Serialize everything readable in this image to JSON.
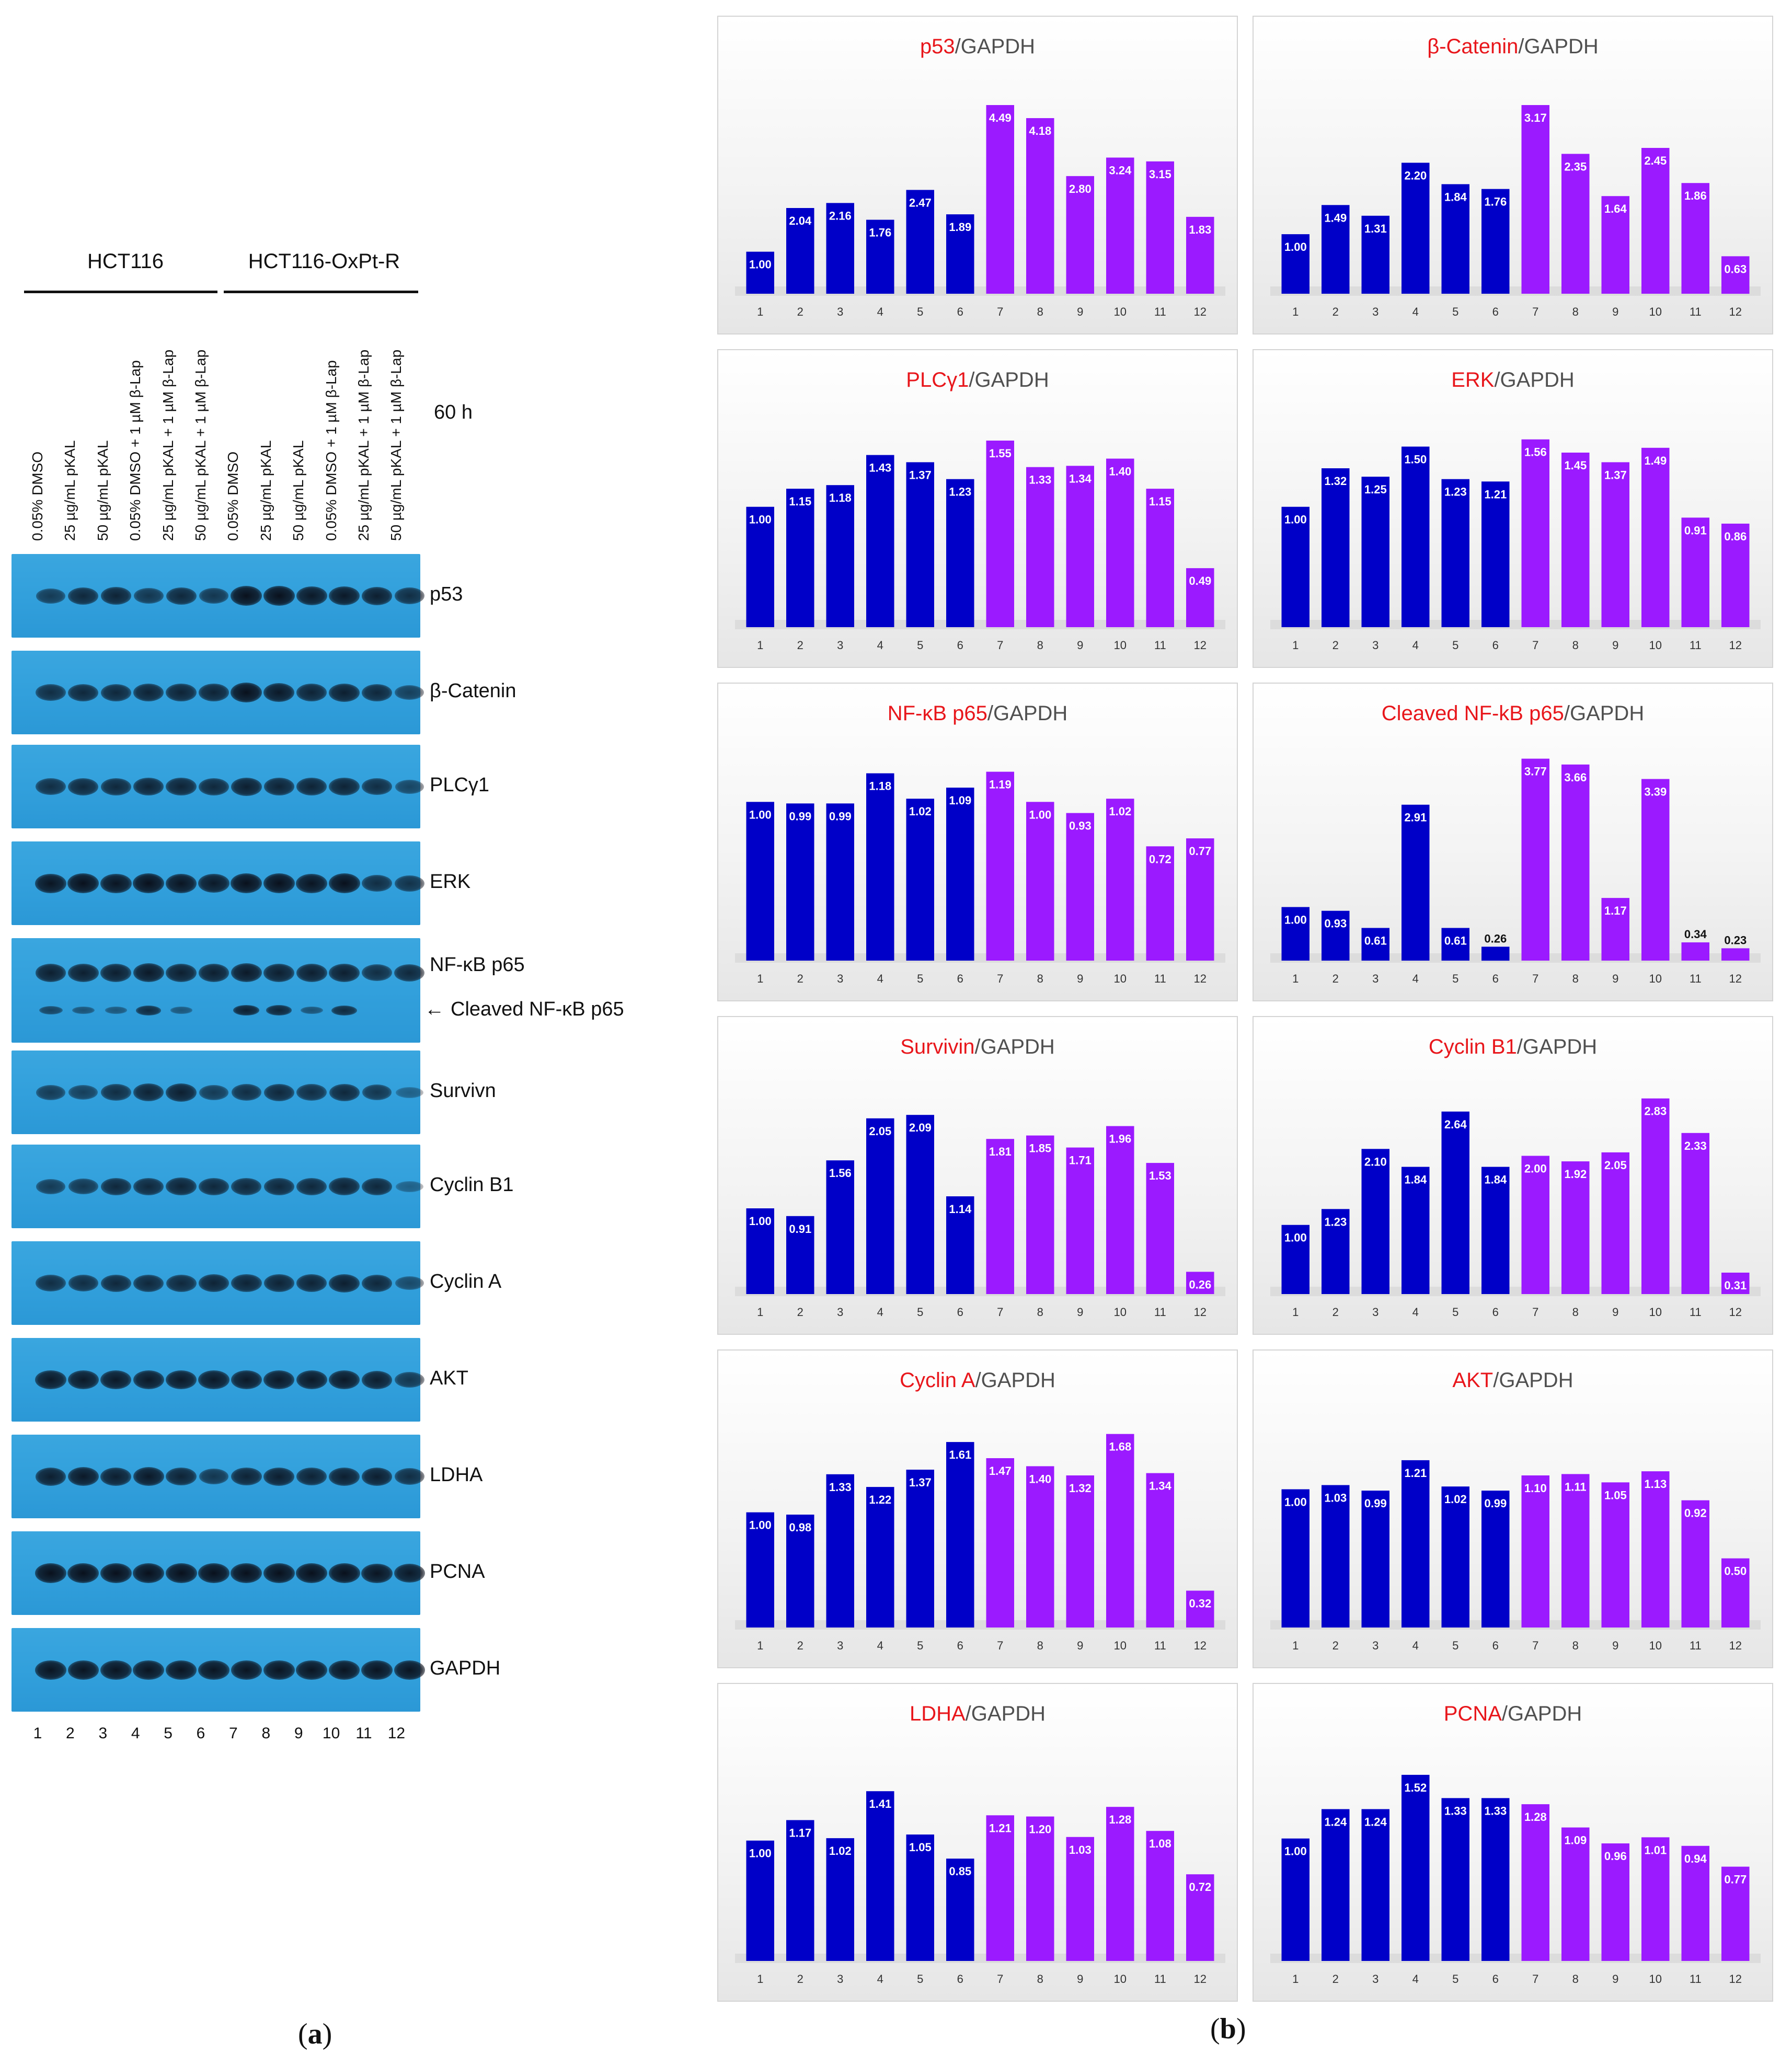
{
  "panel_a": {
    "groups": [
      {
        "label": "HCT116"
      },
      {
        "label": "HCT116-OxPt-R"
      }
    ],
    "time_label": "60 h",
    "lane_labels": [
      "0.05% DMSO",
      "25 µg/mL pKAL",
      "50 µg/mL pKAL",
      "0.05% DMSO   + 1 µM β-Lap",
      "25 µg/mL pKAL + 1 µM β-Lap",
      "50 µg/mL pKAL + 1 µM β-Lap",
      "0.05% DMSO",
      "25 µg/mL pKAL",
      "50 µg/mL pKAL",
      "0.05% DMSO   + 1 µM β-Lap",
      "25 µg/mL pKAL + 1 µM β-Lap",
      "50 µg/mL pKAL + 1 µM β-Lap"
    ],
    "blots": [
      {
        "label": "p53",
        "intensity": [
          0.55,
          0.75,
          0.8,
          0.6,
          0.75,
          0.6,
          1.0,
          1.0,
          0.9,
          0.9,
          0.85,
          0.7
        ]
      },
      {
        "label": "β-Catenin",
        "intensity": [
          0.7,
          0.75,
          0.75,
          0.8,
          0.8,
          0.8,
          1.0,
          0.9,
          0.8,
          0.85,
          0.75,
          0.5
        ]
      },
      {
        "label": "PLCγ1",
        "intensity": [
          0.7,
          0.75,
          0.75,
          0.8,
          0.8,
          0.75,
          0.85,
          0.8,
          0.8,
          0.8,
          0.7,
          0.45
        ]
      },
      {
        "label": "ERK",
        "intensity": [
          0.95,
          1.0,
          0.95,
          1.0,
          0.95,
          0.9,
          1.0,
          1.0,
          0.95,
          1.0,
          0.7,
          0.65
        ]
      },
      {
        "label": "NF-κB p65",
        "intensity": [
          0.85,
          0.85,
          0.85,
          0.9,
          0.85,
          0.85,
          0.9,
          0.85,
          0.85,
          0.85,
          0.7,
          0.75
        ]
      },
      {
        "label": "Survivn",
        "intensity": [
          0.55,
          0.5,
          0.7,
          0.8,
          0.85,
          0.55,
          0.7,
          0.75,
          0.7,
          0.75,
          0.6,
          0.15
        ]
      },
      {
        "label": "Cyclin B1",
        "intensity": [
          0.55,
          0.6,
          0.75,
          0.75,
          0.8,
          0.75,
          0.75,
          0.75,
          0.75,
          0.8,
          0.75,
          0.15
        ]
      },
      {
        "label": "Cyclin A",
        "intensity": [
          0.7,
          0.7,
          0.75,
          0.75,
          0.75,
          0.8,
          0.8,
          0.8,
          0.8,
          0.85,
          0.75,
          0.4
        ]
      },
      {
        "label": "AKT",
        "intensity": [
          0.9,
          0.9,
          0.9,
          0.9,
          0.9,
          0.9,
          0.9,
          0.9,
          0.9,
          0.9,
          0.85,
          0.6
        ]
      },
      {
        "label": "LDHA",
        "intensity": [
          0.85,
          0.9,
          0.85,
          0.9,
          0.8,
          0.6,
          0.8,
          0.85,
          0.8,
          0.85,
          0.85,
          0.7
        ]
      },
      {
        "label": "PCNA",
        "intensity": [
          1.0,
          1.0,
          1.0,
          1.0,
          1.0,
          1.0,
          1.0,
          1.0,
          1.0,
          1.0,
          0.95,
          0.9
        ]
      },
      {
        "label": "GAPDH",
        "intensity": [
          0.95,
          0.95,
          0.95,
          0.95,
          0.95,
          0.95,
          0.95,
          0.95,
          0.95,
          0.95,
          0.95,
          0.95
        ]
      }
    ],
    "cleaved_label": "Cleaved NF-κB p65",
    "cleaved_arrow": "←",
    "cleaved_intensity": [
      0.5,
      0.35,
      0.3,
      0.75,
      0.3,
      0.0,
      0.85,
      0.8,
      0.35,
      0.75,
      0.0,
      0.0
    ],
    "lane_numbers": [
      "1",
      "2",
      "3",
      "4",
      "5",
      "6",
      "7",
      "8",
      "9",
      "10",
      "11",
      "12"
    ],
    "letter": "a"
  },
  "panel_b": {
    "letter": "b"
  },
  "colors": {
    "hct116": "#0000c8",
    "oxptr": "#9b1aff",
    "title_red": "#e8161b",
    "title_gray": "#505050",
    "blot": "#33a1dd"
  },
  "chart_data": [
    {
      "type": "bar",
      "title_protein": "p53",
      "title_suffix": "/GAPDH",
      "categories": [
        "1",
        "2",
        "3",
        "4",
        "5",
        "6",
        "7",
        "8",
        "9",
        "10",
        "11",
        "12"
      ],
      "values": [
        1.0,
        2.04,
        2.16,
        1.76,
        2.47,
        1.89,
        4.49,
        4.18,
        2.8,
        3.24,
        3.15,
        1.83
      ],
      "value_labels": [
        "1.00",
        "2.04",
        "2.16",
        "1.76",
        "2.47",
        "1.89",
        "4.49",
        "4.18",
        "2.80",
        "3.24",
        "3.15",
        "1.83"
      ],
      "ymax": 5.1
    },
    {
      "type": "bar",
      "title_protein": "β-Catenin",
      "title_suffix": "/GAPDH",
      "categories": [
        "1",
        "2",
        "3",
        "4",
        "5",
        "6",
        "7",
        "8",
        "9",
        "10",
        "11",
        "12"
      ],
      "values": [
        1.0,
        1.49,
        1.31,
        2.2,
        1.84,
        1.76,
        3.17,
        2.35,
        1.64,
        2.45,
        1.86,
        0.63
      ],
      "value_labels": [
        "1.00",
        "1.49",
        "1.31",
        "2.20",
        "1.84",
        "1.76",
        "3.17",
        "2.35",
        "1.64",
        "2.45",
        "1.86",
        "0.63"
      ],
      "ymax": 3.6
    },
    {
      "type": "bar",
      "title_protein": "PLCγ1",
      "title_suffix": "/GAPDH",
      "categories": [
        "1",
        "2",
        "3",
        "4",
        "5",
        "6",
        "7",
        "8",
        "9",
        "10",
        "11",
        "12"
      ],
      "values": [
        1.0,
        1.15,
        1.18,
        1.43,
        1.37,
        1.23,
        1.55,
        1.33,
        1.34,
        1.4,
        1.15,
        0.49
      ],
      "value_labels": [
        "1.00",
        "1.15",
        "1.18",
        "1.43",
        "1.37",
        "1.23",
        "1.55",
        "1.33",
        "1.34",
        "1.40",
        "1.15",
        "0.49"
      ],
      "ymax": 1.78
    },
    {
      "type": "bar",
      "title_protein": "ERK",
      "title_suffix": "/GAPDH",
      "categories": [
        "1",
        "2",
        "3",
        "4",
        "5",
        "6",
        "7",
        "8",
        "9",
        "10",
        "11",
        "12"
      ],
      "values": [
        1.0,
        1.32,
        1.25,
        1.5,
        1.23,
        1.21,
        1.56,
        1.45,
        1.37,
        1.49,
        0.91,
        0.86
      ],
      "value_labels": [
        "1.00",
        "1.32",
        "1.25",
        "1.50",
        "1.23",
        "1.21",
        "1.56",
        "1.45",
        "1.37",
        "1.49",
        "0.91",
        "0.86"
      ],
      "ymax": 1.78
    },
    {
      "type": "bar",
      "title_protein": "NF-κB p65",
      "title_suffix": "/GAPDH",
      "categories": [
        "1",
        "2",
        "3",
        "4",
        "5",
        "6",
        "7",
        "8",
        "9",
        "10",
        "11",
        "12"
      ],
      "values": [
        1.0,
        0.99,
        0.99,
        1.18,
        1.02,
        1.09,
        1.19,
        1.0,
        0.93,
        1.02,
        0.72,
        0.77
      ],
      "value_labels": [
        "1.00",
        "0.99",
        "0.99",
        "1.18",
        "1.02",
        "1.09",
        "1.19",
        "1.00",
        "0.93",
        "1.02",
        "0.72",
        "0.77"
      ],
      "ymax": 1.35
    },
    {
      "type": "bar",
      "title_protein": "Cleaved NF-kB p65",
      "title_suffix": "/GAPDH",
      "categories": [
        "1",
        "2",
        "3",
        "4",
        "5",
        "6",
        "7",
        "8",
        "9",
        "10",
        "11",
        "12"
      ],
      "values": [
        1.0,
        0.93,
        0.61,
        2.91,
        0.61,
        0.26,
        3.77,
        3.66,
        1.17,
        3.39,
        0.34,
        0.23
      ],
      "value_labels": [
        "1.00",
        "0.93",
        "0.61",
        "2.91",
        "0.61",
        "0.26",
        "3.77",
        "3.66",
        "1.17",
        "3.39",
        "0.34",
        "0.23"
      ],
      "ymax": 4.0
    },
    {
      "type": "bar",
      "title_protein": "Survivin",
      "title_suffix": "/GAPDH",
      "categories": [
        "1",
        "2",
        "3",
        "4",
        "5",
        "6",
        "7",
        "8",
        "9",
        "10",
        "11",
        "12"
      ],
      "values": [
        1.0,
        0.91,
        1.56,
        2.05,
        2.09,
        1.14,
        1.81,
        1.85,
        1.71,
        1.96,
        1.53,
        0.26
      ],
      "value_labels": [
        "1.00",
        "0.91",
        "1.56",
        "2.05",
        "2.09",
        "1.14",
        "1.81",
        "1.85",
        "1.71",
        "1.96",
        "1.53",
        "0.26"
      ],
      "ymax": 2.5
    },
    {
      "type": "bar",
      "title_protein": "Cyclin B1",
      "title_suffix": "/GAPDH",
      "categories": [
        "1",
        "2",
        "3",
        "4",
        "5",
        "6",
        "7",
        "8",
        "9",
        "10",
        "11",
        "12"
      ],
      "values": [
        1.0,
        1.23,
        2.1,
        1.84,
        2.64,
        1.84,
        2.0,
        1.92,
        2.05,
        2.83,
        2.33,
        0.31
      ],
      "value_labels": [
        "1.00",
        "1.23",
        "2.10",
        "1.84",
        "2.64",
        "1.84",
        "2.00",
        "1.92",
        "2.05",
        "2.83",
        "2.33",
        "0.31"
      ],
      "ymax": 3.1
    },
    {
      "type": "bar",
      "title_protein": "Cyclin A",
      "title_suffix": "/GAPDH",
      "categories": [
        "1",
        "2",
        "3",
        "4",
        "5",
        "6",
        "7",
        "8",
        "9",
        "10",
        "11",
        "12"
      ],
      "values": [
        1.0,
        0.98,
        1.33,
        1.22,
        1.37,
        1.61,
        1.47,
        1.4,
        1.32,
        1.68,
        1.34,
        0.32
      ],
      "value_labels": [
        "1.00",
        "0.98",
        "1.33",
        "1.22",
        "1.37",
        "1.61",
        "1.47",
        "1.40",
        "1.32",
        "1.68",
        "1.34",
        "0.32"
      ],
      "ymax": 1.86
    },
    {
      "type": "bar",
      "title_protein": "AKT",
      "title_suffix": "/GAPDH",
      "categories": [
        "1",
        "2",
        "3",
        "4",
        "5",
        "6",
        "7",
        "8",
        "9",
        "10",
        "11",
        "12"
      ],
      "values": [
        1.0,
        1.03,
        0.99,
        1.21,
        1.02,
        0.99,
        1.1,
        1.11,
        1.05,
        1.13,
        0.92,
        0.5
      ],
      "value_labels": [
        "1.00",
        "1.03",
        "0.99",
        "1.21",
        "1.02",
        "0.99",
        "1.10",
        "1.11",
        "1.05",
        "1.13",
        "0.92",
        "0.50"
      ],
      "ymax": 1.55
    },
    {
      "type": "bar",
      "title_protein": "LDHA",
      "title_suffix": "/GAPDH",
      "categories": [
        "1",
        "2",
        "3",
        "4",
        "5",
        "6",
        "7",
        "8",
        "9",
        "10",
        "11",
        "12"
      ],
      "values": [
        1.0,
        1.17,
        1.02,
        1.41,
        1.05,
        0.85,
        1.21,
        1.2,
        1.03,
        1.28,
        1.08,
        0.72
      ],
      "value_labels": [
        "1.00",
        "1.17",
        "1.02",
        "1.41",
        "1.05",
        "0.85",
        "1.21",
        "1.20",
        "1.03",
        "1.28",
        "1.08",
        "0.72"
      ],
      "ymax": 1.78
    },
    {
      "type": "bar",
      "title_protein": "PCNA",
      "title_suffix": "/GAPDH",
      "categories": [
        "1",
        "2",
        "3",
        "4",
        "5",
        "6",
        "7",
        "8",
        "9",
        "10",
        "11",
        "12"
      ],
      "values": [
        1.0,
        1.24,
        1.24,
        1.52,
        1.33,
        1.33,
        1.28,
        1.09,
        0.96,
        1.01,
        0.94,
        0.77
      ],
      "value_labels": [
        "1.00",
        "1.24",
        "1.24",
        "1.52",
        "1.33",
        "1.33",
        "1.28",
        "1.09",
        "0.96",
        "1.01",
        "0.94",
        "0.77"
      ],
      "ymax": 1.75
    }
  ]
}
